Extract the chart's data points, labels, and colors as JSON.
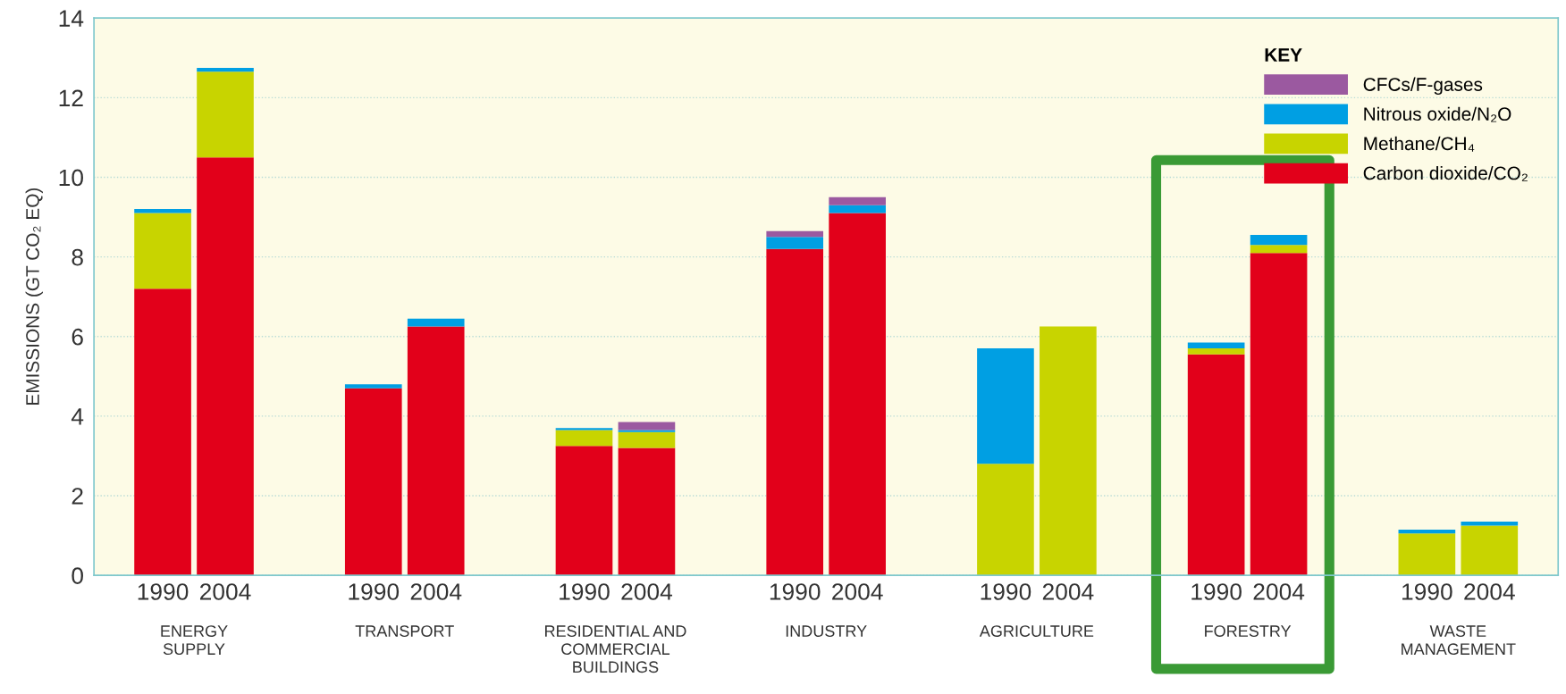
{
  "chart_data": {
    "type": "bar",
    "stacked": true,
    "ylabel": "EMISSIONS (GT CO₂ EQ)",
    "legend_title": "KEY",
    "legend": "top right",
    "grid": "y",
    "ylim": [
      0,
      14
    ],
    "yticks": [
      0,
      2,
      4,
      6,
      8,
      10,
      12,
      14
    ],
    "categories": [
      "1990",
      "2004",
      "1990",
      "2004",
      "1990",
      "2004",
      "1990",
      "2004",
      "1990",
      "2004",
      "1990",
      "2004",
      "1990",
      "2004"
    ],
    "annotations": [
      "ENERGY\nSUPPLY",
      "TRANSPORT",
      "RESIDENTIAL AND\nCOMMERCIAL\nBUILDINGS",
      "INDUSTRY",
      "AGRICULTURE",
      "FORESTRY",
      "WASTE\nMANAGEMENT"
    ],
    "series": [
      {
        "name": "Carbon dioxide/CO₂",
        "color": "#e2001a",
        "values": [
          7.2,
          10.5,
          4.7,
          6.25,
          3.25,
          3.2,
          8.2,
          9.1,
          null,
          null,
          5.55,
          8.1,
          null,
          null
        ]
      },
      {
        "name": "Methane/CH₄",
        "color": "#c8d400",
        "values": [
          1.9,
          2.15,
          null,
          null,
          0.4,
          0.4,
          null,
          null,
          2.8,
          6.25,
          0.15,
          0.2,
          1.05,
          1.25
        ]
      },
      {
        "name": "Nitrous oxide/N₂O",
        "color": "#009fe3",
        "values": [
          0.1,
          0.1,
          0.1,
          0.2,
          0.05,
          0.05,
          0.3,
          0.2,
          2.9,
          null,
          0.15,
          0.25,
          0.1,
          0.1
        ]
      },
      {
        "name": "CFCs/F-gases",
        "color": "#9b59a0",
        "values": [
          null,
          null,
          null,
          null,
          null,
          0.2,
          0.15,
          0.2,
          null,
          null,
          null,
          null,
          null,
          null
        ]
      }
    ]
  }
}
